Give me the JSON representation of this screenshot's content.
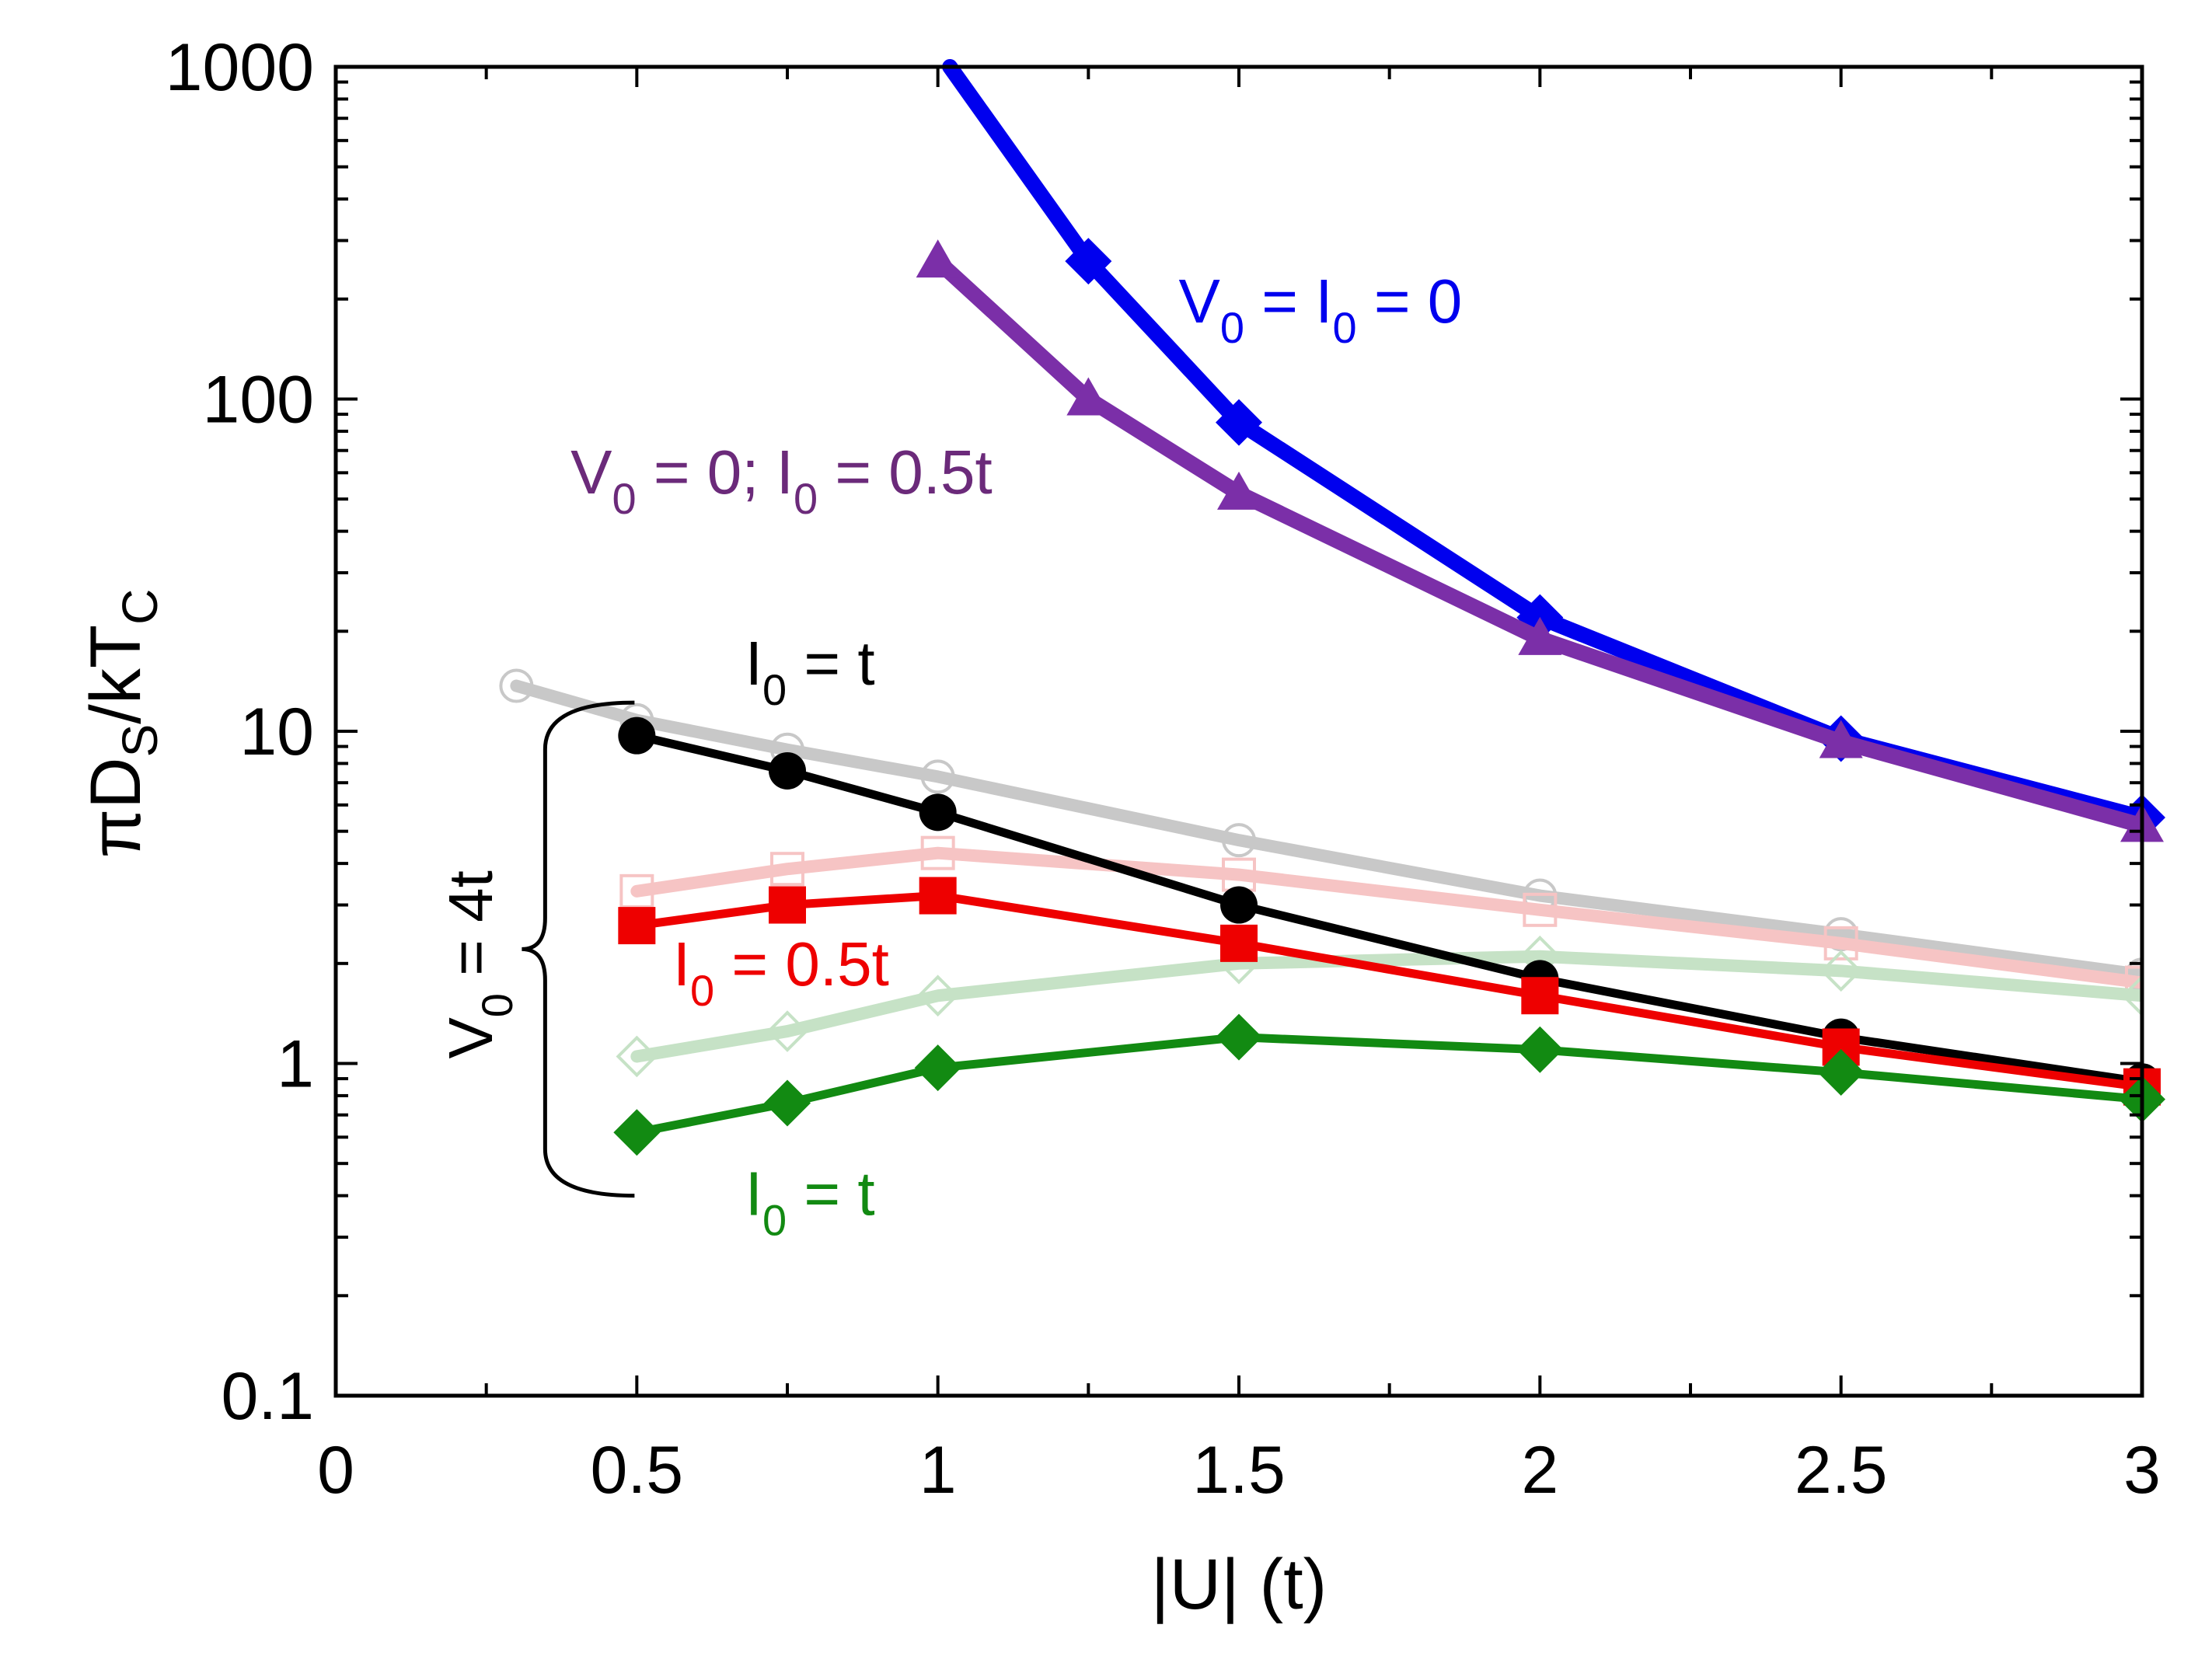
{
  "chart_data": {
    "type": "line",
    "xlabel": "|U| (t)",
    "ylabel": "πD_S/kT_C",
    "ylabel_parts": {
      "main": "πD",
      "sub1": "S",
      "mid": "/kT",
      "sub2": "C"
    },
    "xlim": [
      0,
      3
    ],
    "ylim": [
      0.1,
      1000
    ],
    "yscale": "log",
    "grid": false,
    "x_ticks": [
      0,
      0.5,
      1,
      1.5,
      2,
      2.5,
      3
    ],
    "x_tick_labels": [
      "0",
      "0.5",
      "1",
      "1.5",
      "2",
      "2.5",
      "3"
    ],
    "y_ticks": [
      0.1,
      1,
      10,
      100,
      1000
    ],
    "y_tick_labels": [
      "0.1",
      "1",
      "10",
      "100",
      "1000"
    ],
    "series": [
      {
        "name": "V0 = I0 = 0",
        "color": "#0000ee",
        "marker": "diamond",
        "faded": false,
        "x": [
          1.25,
          1.5,
          2,
          2.5,
          3
        ],
        "y": [
          260,
          85,
          22,
          9.5,
          5.5
        ],
        "curve_x": [
          1.02,
          1.25,
          1.5,
          2,
          2.5,
          3
        ],
        "curve_y": [
          1000,
          260,
          85,
          22,
          9.5,
          5.5
        ]
      },
      {
        "name": "V0 = 0; I0 = 0.5t",
        "color": "#7b2fa8",
        "marker": "triangle",
        "faded": false,
        "x": [
          1,
          1.25,
          1.5,
          2,
          2.5,
          3
        ],
        "y": [
          260,
          100,
          52,
          19,
          9.3,
          5.2
        ]
      },
      {
        "name": "V0 = 4t, I0 = t (black)",
        "color": "#000000",
        "marker": "circle",
        "faded": false,
        "x": [
          0.5,
          0.75,
          1,
          1.5,
          2,
          2.5,
          3
        ],
        "y": [
          9.7,
          7.6,
          5.7,
          3.0,
          1.8,
          1.2,
          0.88
        ]
      },
      {
        "name": "V0 = 4t, I0 = 0.5t",
        "color": "#ee0000",
        "marker": "square",
        "faded": false,
        "x": [
          0.5,
          0.75,
          1,
          1.5,
          2,
          2.5,
          3
        ],
        "y": [
          2.6,
          3.0,
          3.2,
          2.3,
          1.6,
          1.12,
          0.85
        ]
      },
      {
        "name": "V0 = 4t, I0 = t (green)",
        "color": "#128a12",
        "marker": "diamond",
        "faded": false,
        "x": [
          0.5,
          0.75,
          1,
          1.5,
          2,
          2.5,
          3
        ],
        "y": [
          0.62,
          0.76,
          0.97,
          1.2,
          1.1,
          0.94,
          0.78
        ]
      },
      {
        "name": "reference gray",
        "color": "#c8c8c8",
        "marker": "open-circle",
        "faded": true,
        "x": [
          0.3,
          0.5,
          0.75,
          1,
          1.5,
          2,
          2.5,
          3
        ],
        "y": [
          13.7,
          10.8,
          8.8,
          7.3,
          4.7,
          3.2,
          2.45,
          1.85
        ]
      },
      {
        "name": "reference pink",
        "color": "#f6c4c4",
        "marker": "open-square",
        "faded": true,
        "x": [
          0.5,
          0.75,
          1,
          1.5,
          2,
          2.5,
          3
        ],
        "y": [
          3.3,
          3.85,
          4.3,
          3.7,
          2.9,
          2.3,
          1.75
        ]
      },
      {
        "name": "reference light green",
        "color": "#c6e2c6",
        "marker": "open-diamond",
        "faded": true,
        "x": [
          0.5,
          0.75,
          1,
          1.5,
          2,
          2.5,
          3
        ],
        "y": [
          1.05,
          1.25,
          1.6,
          2.0,
          2.1,
          1.9,
          1.6
        ]
      }
    ],
    "annotations": [
      {
        "main": "V",
        "sub": "0",
        "rest": " = I",
        "sub2": "0",
        "rest2": " = 0",
        "color": "#0000ee",
        "x": 1.4,
        "y": 170
      },
      {
        "main": "V",
        "sub": "0",
        "rest": " = 0; I",
        "sub2": "0",
        "rest2": " = 0.5t",
        "color": "#6b2a7a",
        "x": 0.39,
        "y": 52
      },
      {
        "main": "I",
        "sub": "0",
        "rest": " = t",
        "sub2": "",
        "rest2": "",
        "color": "#000000",
        "x": 0.68,
        "y": 13.8
      },
      {
        "main": "I",
        "sub": "0",
        "rest": " = 0.5t",
        "sub2": "",
        "rest2": "",
        "color": "#ee0000",
        "x": 0.56,
        "y": 1.72
      },
      {
        "main": "I",
        "sub": "0",
        "rest": " = t",
        "sub2": "",
        "rest2": "",
        "color": "#128a12",
        "x": 0.68,
        "y": 0.35
      }
    ],
    "bracket_label": {
      "main": "V",
      "sub": "0",
      "rest": " = 4t",
      "x": 0.24,
      "y": 2.2
    },
    "bracket_range": {
      "x": 0.38,
      "ymin": 0.4,
      "ymax": 12.2
    }
  }
}
